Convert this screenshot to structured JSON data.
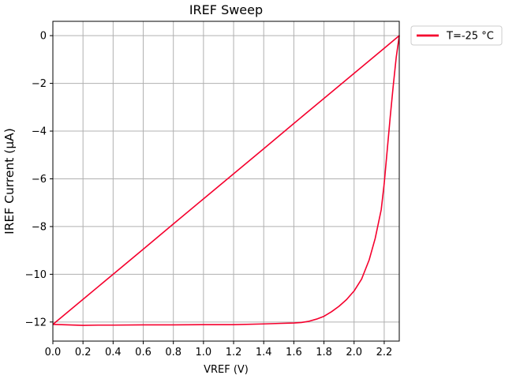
{
  "chart_data": {
    "type": "line",
    "title": "IREF Sweep",
    "xlabel": "VREF (V)",
    "ylabel": "IREF Current (μA)",
    "xlim": [
      0.0,
      2.3
    ],
    "ylim": [
      -12.8,
      0.6
    ],
    "xticks": [
      0.0,
      0.2,
      0.4,
      0.6,
      0.8,
      1.0,
      1.2,
      1.4,
      1.6,
      1.8,
      2.0,
      2.2
    ],
    "xtick_labels": [
      "0.0",
      "0.2",
      "0.4",
      "0.6",
      "0.8",
      "1.0",
      "1.2",
      "1.4",
      "1.6",
      "1.8",
      "2.0",
      "2.2"
    ],
    "yticks": [
      0,
      -2,
      -4,
      -6,
      -8,
      -10,
      -12
    ],
    "ytick_labels": [
      "0",
      "−2",
      "−4",
      "−6",
      "−8",
      "−10",
      "−12"
    ],
    "grid": true,
    "legend_position": "outside-top-right",
    "series": [
      {
        "name": "T=-25 °C",
        "color": "#f5002d",
        "x": [
          0.0,
          0.1,
          0.2,
          0.3,
          0.4,
          0.6,
          0.8,
          1.0,
          1.2,
          1.4,
          1.5,
          1.6,
          1.65,
          1.7,
          1.75,
          1.8,
          1.85,
          1.9,
          1.95,
          2.0,
          2.05,
          2.1,
          2.14,
          2.18,
          2.2,
          2.22,
          2.24,
          2.26,
          2.28,
          2.3,
          2.2,
          2.0,
          1.8,
          1.6,
          1.4,
          1.2,
          1.0,
          0.8,
          0.6,
          0.4,
          0.2,
          0.0
        ],
        "y": [
          -12.1,
          -12.12,
          -12.14,
          -12.13,
          -12.13,
          -12.12,
          -12.12,
          -12.11,
          -12.11,
          -12.08,
          -12.06,
          -12.04,
          -12.02,
          -11.97,
          -11.88,
          -11.76,
          -11.57,
          -11.34,
          -11.06,
          -10.7,
          -10.2,
          -9.4,
          -8.5,
          -7.3,
          -6.2,
          -4.8,
          -3.4,
          -2.1,
          -0.9,
          0.0,
          -0.53,
          -1.58,
          -2.63,
          -3.68,
          -4.74,
          -5.79,
          -6.84,
          -7.89,
          -8.95,
          -10.0,
          -11.05,
          -12.1
        ]
      }
    ]
  }
}
